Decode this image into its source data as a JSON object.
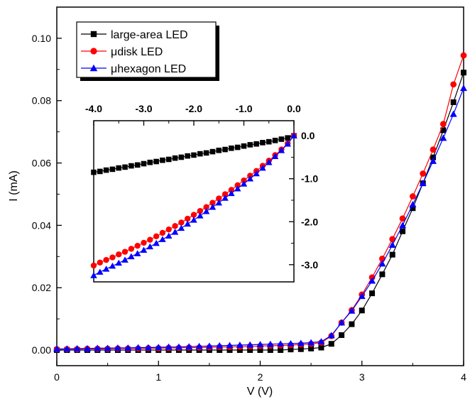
{
  "chart_data": [
    {
      "type": "line",
      "panel": "main",
      "xlabel": "V (V)",
      "ylabel": "I (mA)",
      "xlim": [
        0,
        4
      ],
      "ylim": [
        -0.005,
        0.11
      ],
      "xticks": [
        "0",
        "1",
        "2",
        "3",
        "4"
      ],
      "yticks": [
        "0.00",
        "0.02",
        "0.04",
        "0.06",
        "0.08",
        "0.10"
      ],
      "legend": "top-left",
      "series": [
        {
          "name": "large-area LED",
          "color": "#000000",
          "marker": "square",
          "x": [
            0.0,
            0.1,
            0.2,
            0.3,
            0.4,
            0.5,
            0.6,
            0.7,
            0.8,
            0.9,
            1.0,
            1.1,
            1.2,
            1.3,
            1.4,
            1.5,
            1.6,
            1.7,
            1.8,
            1.9,
            2.0,
            2.1,
            2.2,
            2.3,
            2.4,
            2.5,
            2.6,
            2.7,
            2.8,
            2.9,
            3.0,
            3.1,
            3.2,
            3.3,
            3.4,
            3.5,
            3.6,
            3.7,
            3.8,
            3.9,
            4.0
          ],
          "values": [
            0.0,
            0.0,
            0.0,
            0.0,
            0.0,
            0.0,
            0.0,
            0.0,
            0.0,
            0.0,
            0.0,
            0.0,
            0.0,
            0.0,
            0.0,
            0.0,
            0.0,
            0.0,
            0.0,
            0.0,
            0.0,
            0.0,
            0.0,
            0.0002,
            0.0003,
            0.0005,
            0.0008,
            0.002,
            0.0048,
            0.0083,
            0.0127,
            0.0182,
            0.0243,
            0.0306,
            0.0381,
            0.0455,
            0.0535,
            0.0618,
            0.0705,
            0.0795,
            0.089
          ]
        },
        {
          "name": "μdisk LED",
          "color": "#ff0000",
          "marker": "circle",
          "x": [
            0.0,
            0.1,
            0.2,
            0.3,
            0.4,
            0.5,
            0.6,
            0.7,
            0.8,
            0.9,
            1.0,
            1.1,
            1.2,
            1.3,
            1.4,
            1.5,
            1.6,
            1.7,
            1.8,
            1.9,
            2.0,
            2.1,
            2.2,
            2.3,
            2.4,
            2.5,
            2.6,
            2.7,
            2.8,
            2.9,
            3.0,
            3.1,
            3.2,
            3.3,
            3.4,
            3.5,
            3.6,
            3.7,
            3.8,
            3.9,
            4.0
          ],
          "values": [
            0.0003,
            0.0003,
            0.0003,
            0.0004,
            0.0004,
            0.0004,
            0.0005,
            0.0005,
            0.0005,
            0.0006,
            0.0006,
            0.0007,
            0.0007,
            0.0008,
            0.0008,
            0.0009,
            0.001,
            0.001,
            0.0011,
            0.0012,
            0.0013,
            0.0014,
            0.0015,
            0.0016,
            0.0018,
            0.002,
            0.0024,
            0.0045,
            0.0088,
            0.0128,
            0.0178,
            0.0233,
            0.0293,
            0.0356,
            0.0422,
            0.0493,
            0.0566,
            0.0643,
            0.0725,
            0.0852,
            0.0945
          ]
        },
        {
          "name": "μhexagon LED",
          "color": "#0000ff",
          "marker": "triangle",
          "x": [
            0.0,
            0.1,
            0.2,
            0.3,
            0.4,
            0.5,
            0.6,
            0.7,
            0.8,
            0.9,
            1.0,
            1.1,
            1.2,
            1.3,
            1.4,
            1.5,
            1.6,
            1.7,
            1.8,
            1.9,
            2.0,
            2.1,
            2.2,
            2.3,
            2.4,
            2.5,
            2.6,
            2.7,
            2.8,
            2.9,
            3.0,
            3.1,
            3.2,
            3.3,
            3.4,
            3.5,
            3.6,
            3.7,
            3.8,
            3.9,
            4.0
          ],
          "values": [
            0.0004,
            0.0004,
            0.0005,
            0.0005,
            0.0006,
            0.0006,
            0.0007,
            0.0007,
            0.0008,
            0.0008,
            0.0009,
            0.001,
            0.001,
            0.0011,
            0.0012,
            0.0013,
            0.0014,
            0.0015,
            0.0016,
            0.0017,
            0.0018,
            0.0019,
            0.002,
            0.0021,
            0.0022,
            0.0024,
            0.0027,
            0.0047,
            0.0088,
            0.0126,
            0.0173,
            0.0222,
            0.0277,
            0.0337,
            0.04,
            0.0467,
            0.0535,
            0.0606,
            0.068,
            0.0757,
            0.084
          ]
        }
      ]
    },
    {
      "type": "line",
      "panel": "inset",
      "xlim": [
        -4.0,
        0.0
      ],
      "ylim": [
        -3.4,
        0.35
      ],
      "xticks": [
        "-4.0",
        "-3.0",
        "-2.0",
        "-1.0",
        "0.0"
      ],
      "yticks": [
        "0.0",
        "-1.0",
        "-2.0",
        "-3.0"
      ],
      "series": [
        {
          "name": "large-area LED",
          "color": "#000000",
          "marker": "square",
          "x": [
            -4.0,
            -3.875,
            -3.75,
            -3.625,
            -3.5,
            -3.375,
            -3.25,
            -3.125,
            -3.0,
            -2.875,
            -2.75,
            -2.625,
            -2.5,
            -2.375,
            -2.25,
            -2.125,
            -2.0,
            -1.875,
            -1.75,
            -1.625,
            -1.5,
            -1.375,
            -1.25,
            -1.125,
            -1.0,
            -0.875,
            -0.75,
            -0.625,
            -0.5,
            -0.375,
            -0.25,
            -0.125,
            0.0
          ],
          "values": [
            -0.85,
            -0.83,
            -0.8,
            -0.78,
            -0.75,
            -0.73,
            -0.7,
            -0.68,
            -0.65,
            -0.62,
            -0.6,
            -0.57,
            -0.55,
            -0.52,
            -0.5,
            -0.47,
            -0.45,
            -0.42,
            -0.4,
            -0.37,
            -0.34,
            -0.32,
            -0.29,
            -0.27,
            -0.24,
            -0.21,
            -0.19,
            -0.16,
            -0.14,
            -0.11,
            -0.08,
            -0.05,
            0.0
          ]
        },
        {
          "name": "μdisk LED",
          "color": "#ff0000",
          "marker": "circle",
          "x": [
            -4.0,
            -3.875,
            -3.75,
            -3.625,
            -3.5,
            -3.375,
            -3.25,
            -3.125,
            -3.0,
            -2.875,
            -2.75,
            -2.625,
            -2.5,
            -2.375,
            -2.25,
            -2.125,
            -2.0,
            -1.875,
            -1.75,
            -1.625,
            -1.5,
            -1.375,
            -1.25,
            -1.125,
            -1.0,
            -0.875,
            -0.75,
            -0.625,
            -0.5,
            -0.375,
            -0.25,
            -0.125,
            0.0
          ],
          "values": [
            -3.02,
            -2.95,
            -2.89,
            -2.83,
            -2.76,
            -2.7,
            -2.63,
            -2.56,
            -2.49,
            -2.42,
            -2.34,
            -2.26,
            -2.18,
            -2.1,
            -2.02,
            -1.93,
            -1.84,
            -1.75,
            -1.66,
            -1.56,
            -1.46,
            -1.36,
            -1.26,
            -1.15,
            -1.04,
            -0.93,
            -0.82,
            -0.7,
            -0.58,
            -0.45,
            -0.32,
            -0.18,
            0.0
          ]
        },
        {
          "name": "μhexagon LED",
          "color": "#0000ff",
          "marker": "triangle",
          "x": [
            -4.0,
            -3.875,
            -3.75,
            -3.625,
            -3.5,
            -3.375,
            -3.25,
            -3.125,
            -3.0,
            -2.875,
            -2.75,
            -2.625,
            -2.5,
            -2.375,
            -2.25,
            -2.125,
            -2.0,
            -1.875,
            -1.75,
            -1.625,
            -1.5,
            -1.375,
            -1.25,
            -1.125,
            -1.0,
            -0.875,
            -0.75,
            -0.625,
            -0.5,
            -0.375,
            -0.25,
            -0.125,
            0.0
          ],
          "values": [
            -3.25,
            -3.17,
            -3.1,
            -3.03,
            -2.96,
            -2.89,
            -2.81,
            -2.74,
            -2.66,
            -2.58,
            -2.5,
            -2.41,
            -2.33,
            -2.24,
            -2.15,
            -2.05,
            -1.96,
            -1.86,
            -1.76,
            -1.66,
            -1.56,
            -1.45,
            -1.34,
            -1.23,
            -1.12,
            -1.0,
            -0.88,
            -0.75,
            -0.62,
            -0.48,
            -0.34,
            -0.19,
            0.0
          ]
        }
      ]
    }
  ]
}
